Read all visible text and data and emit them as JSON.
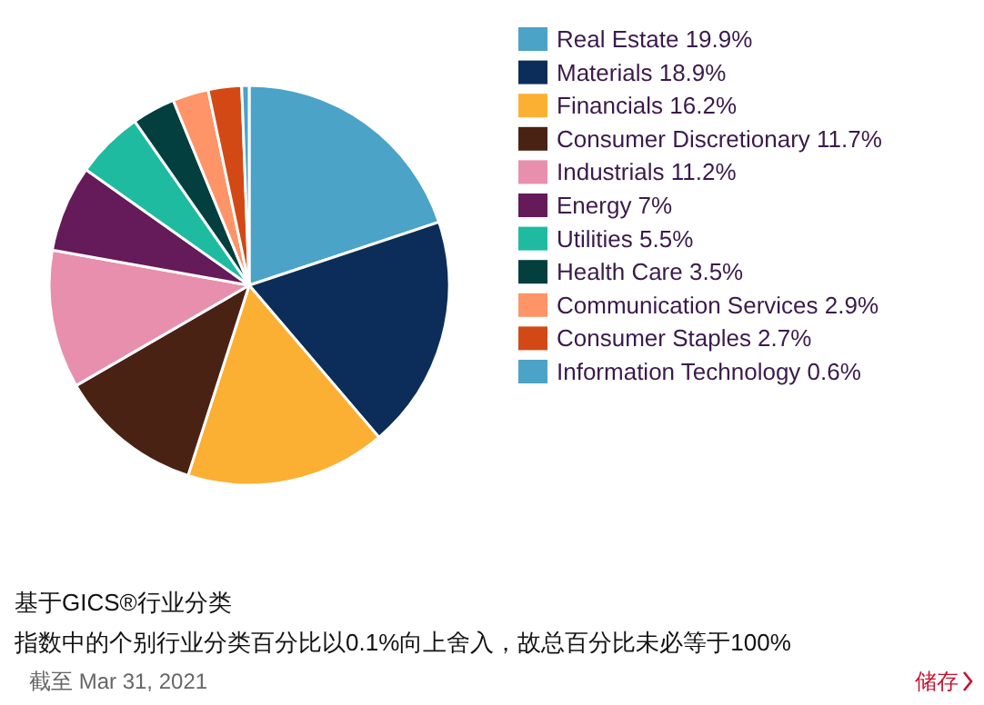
{
  "chart_data": {
    "type": "pie",
    "categories": [
      "Real Estate",
      "Materials",
      "Financials",
      "Consumer Discretionary",
      "Industrials",
      "Energy",
      "Utilities",
      "Health Care",
      "Communication Services",
      "Consumer Staples",
      "Information Technology"
    ],
    "values": [
      19.9,
      18.9,
      16.2,
      11.7,
      11.2,
      7,
      5.5,
      3.5,
      2.9,
      2.7,
      0.6
    ],
    "value_labels": [
      "19.9%",
      "18.9%",
      "16.2%",
      "11.7%",
      "11.2%",
      "7%",
      "5.5%",
      "3.5%",
      "2.9%",
      "2.7%",
      "0.6%"
    ],
    "colors": [
      "#4ba3c7",
      "#0c2d5a",
      "#fbb034",
      "#4a2214",
      "#e88fae",
      "#651a5a",
      "#1fbba0",
      "#033f3f",
      "#fe9468",
      "#d24915",
      "#4ba3c7"
    ],
    "legend": "right",
    "annotations": [
      "基于GICS®行业分类",
      "指数中的个别行业分类百分比以0.1%向上舍入，故总百分比未必等于100%",
      "截至 Mar 31, 2021",
      "储存"
    ]
  }
}
